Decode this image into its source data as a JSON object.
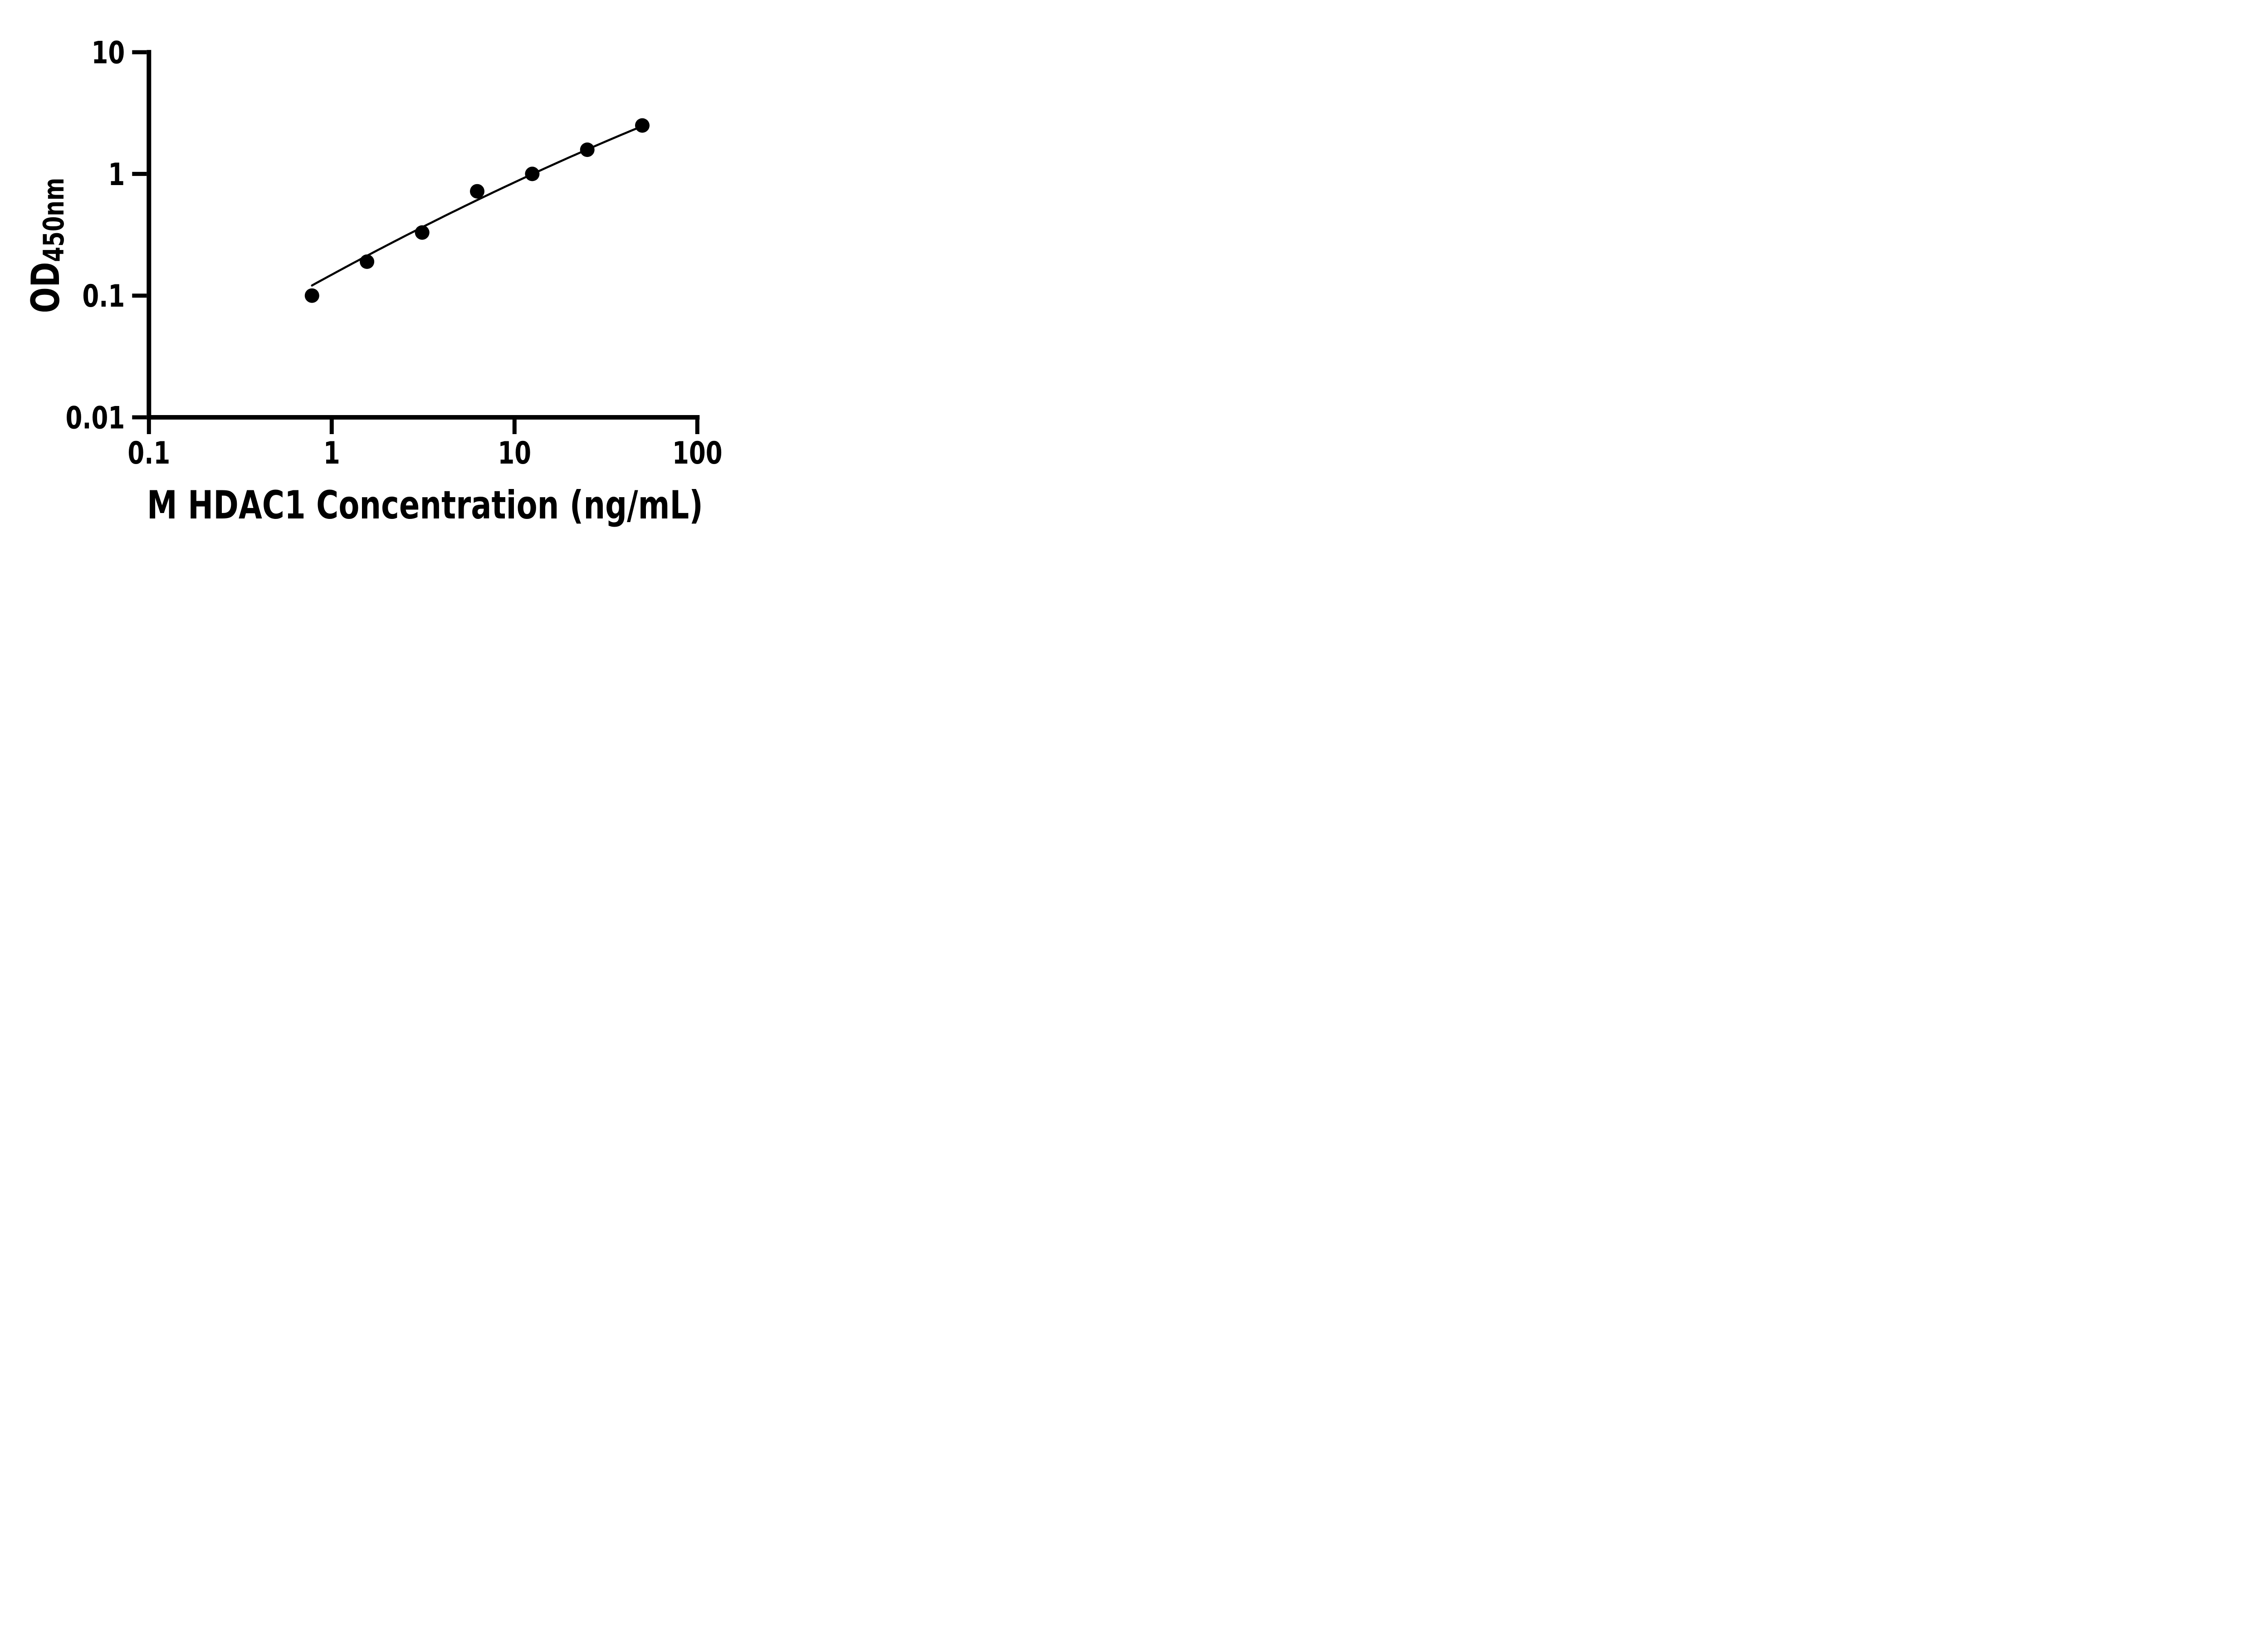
{
  "figure": {
    "background": "#ffffff",
    "ink_color": "#000000"
  },
  "chart_data": {
    "type": "scatter",
    "xlabel": "M HDAC1 Concentration (ng/mL)",
    "ylabel": "OD",
    "ylabel_subscript": "450nm",
    "x_scale": "log",
    "y_scale": "log",
    "xlim": [
      0.1,
      100
    ],
    "ylim": [
      0.01,
      10
    ],
    "x_ticks": [
      0.1,
      1,
      10,
      100
    ],
    "x_tick_labels": [
      "0.1",
      "1",
      "10",
      "100"
    ],
    "y_ticks": [
      0.01,
      0.1,
      1,
      10
    ],
    "y_tick_labels": [
      "0.01",
      "0.1",
      "1",
      "10"
    ],
    "grid": false,
    "legend": null,
    "series": [
      {
        "name": "standard-curve-points",
        "marker": "circle",
        "color": "#000000",
        "x": [
          0.78,
          1.56,
          3.125,
          6.25,
          12.5,
          25,
          50
        ],
        "y": [
          0.1,
          0.19,
          0.33,
          0.72,
          1.0,
          1.58,
          2.5
        ]
      }
    ],
    "fit_curve": {
      "type": "quadratic_loglog",
      "description": "log10(OD) = a + b*log10(C) + c*log10(C)^2",
      "a": -0.828,
      "b": 0.816,
      "c": -0.0572,
      "domain": [
        0.78,
        50
      ],
      "color": "#000000"
    }
  }
}
